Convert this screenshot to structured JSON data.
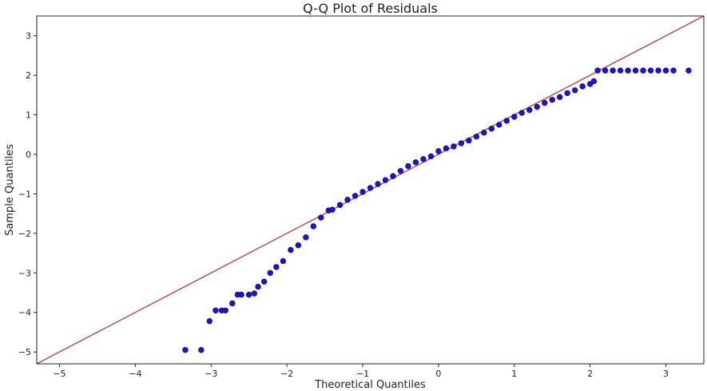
{
  "chart_data": {
    "type": "scatter",
    "title": "Q-Q Plot of Residuals",
    "xlabel": "Theoretical Quantiles",
    "ylabel": "Sample Quantiles",
    "xlim": [
      -5.3,
      3.5
    ],
    "ylim": [
      -5.3,
      3.5
    ],
    "xticks": [
      -5,
      -4,
      -3,
      -2,
      -1,
      0,
      1,
      2,
      3
    ],
    "yticks": [
      -5,
      -4,
      -3,
      -2,
      -1,
      0,
      1,
      2,
      3
    ],
    "xtick_labels": [
      "−5",
      "−4",
      "−3",
      "−2",
      "−1",
      "0",
      "1",
      "2",
      "3"
    ],
    "ytick_labels": [
      "−5",
      "−4",
      "−3",
      "−2",
      "−1",
      "0",
      "1",
      "2",
      "3"
    ],
    "grid": false,
    "colors": {
      "points": "#1a12d4",
      "point_edge": "#0c0890",
      "reference_line": "#c0504d"
    },
    "reference_line": {
      "slope": 1,
      "intercept": 0
    },
    "points_x": [
      -3.34,
      -3.13,
      -3.02,
      -2.94,
      -2.86,
      -2.81,
      -2.72,
      -2.65,
      -2.6,
      -2.5,
      -2.43,
      -2.38,
      -2.3,
      -2.22,
      -2.14,
      -2.05,
      -1.95,
      -1.85,
      -1.75,
      -1.65,
      -1.55,
      -1.45,
      -1.4,
      -1.3,
      -1.2,
      -1.1,
      -1.0,
      -0.9,
      -0.8,
      -0.7,
      -0.6,
      -0.5,
      -0.4,
      -0.3,
      -0.2,
      -0.1,
      0.0,
      0.1,
      0.2,
      0.3,
      0.4,
      0.5,
      0.6,
      0.7,
      0.8,
      0.9,
      1.0,
      1.1,
      1.2,
      1.3,
      1.4,
      1.5,
      1.6,
      1.7,
      1.8,
      1.9,
      2.0,
      2.05,
      2.1,
      2.2,
      2.3,
      2.4,
      2.5,
      2.6,
      2.7,
      2.8,
      2.9,
      3.0,
      3.1,
      3.3
    ],
    "points_y": [
      -4.95,
      -4.95,
      -4.22,
      -3.95,
      -3.95,
      -3.95,
      -3.77,
      -3.55,
      -3.55,
      -3.55,
      -3.52,
      -3.35,
      -3.22,
      -3.0,
      -2.85,
      -2.7,
      -2.42,
      -2.3,
      -2.1,
      -1.82,
      -1.6,
      -1.42,
      -1.4,
      -1.28,
      -1.15,
      -1.05,
      -0.95,
      -0.85,
      -0.75,
      -0.65,
      -0.55,
      -0.42,
      -0.3,
      -0.2,
      -0.12,
      -0.05,
      0.08,
      0.15,
      0.2,
      0.28,
      0.35,
      0.45,
      0.55,
      0.65,
      0.75,
      0.85,
      0.95,
      1.05,
      1.12,
      1.2,
      1.3,
      1.38,
      1.45,
      1.55,
      1.62,
      1.72,
      1.78,
      1.85,
      2.12,
      2.12,
      2.12,
      2.12,
      2.12,
      2.12,
      2.12,
      2.12,
      2.12,
      2.12,
      2.12,
      2.12
    ]
  }
}
